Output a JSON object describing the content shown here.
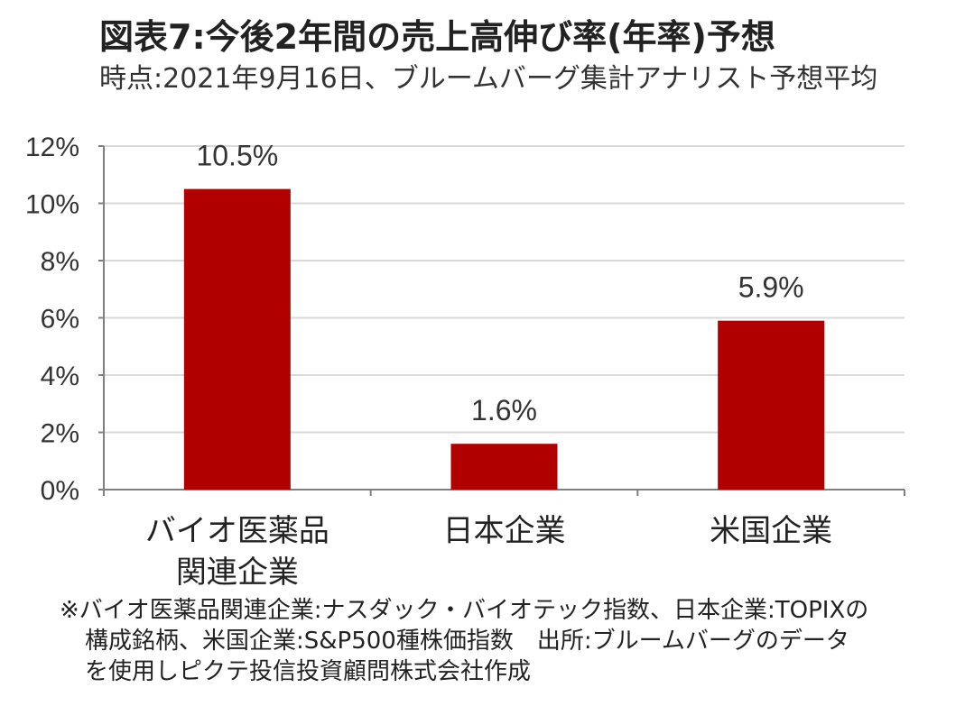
{
  "header": {
    "title": "図表7:今後2年間の売上高伸び率(年率)予想",
    "subtitle": "時点:2021年9月16日、ブルームバーグ集計アナリスト予想平均"
  },
  "chart_data": {
    "type": "bar",
    "categories": [
      "バイオ医薬品\n関連企業",
      "日本企業",
      "米国企業"
    ],
    "values": [
      10.5,
      1.6,
      5.9
    ],
    "value_labels": [
      "10.5%",
      "1.6%",
      "5.9%"
    ],
    "y_ticks": [
      0,
      2,
      4,
      6,
      8,
      10,
      12
    ],
    "y_tick_labels": [
      "0%",
      "2%",
      "4%",
      "6%",
      "8%",
      "10%",
      "12%"
    ],
    "ylim": [
      0,
      12
    ],
    "grid": true,
    "bar_color": "#B00000",
    "grid_color": "#D9D9D9"
  },
  "footnote": {
    "lines": [
      "※バイオ医薬品関連企業:ナスダック・バイオテック指数、日本企業:TOPIXの",
      "構成銘柄、米国企業:S&P500種株価指数　出所:ブルームバーグのデータ",
      "を使用しピクテ投信投資顧問株式会社作成"
    ]
  }
}
